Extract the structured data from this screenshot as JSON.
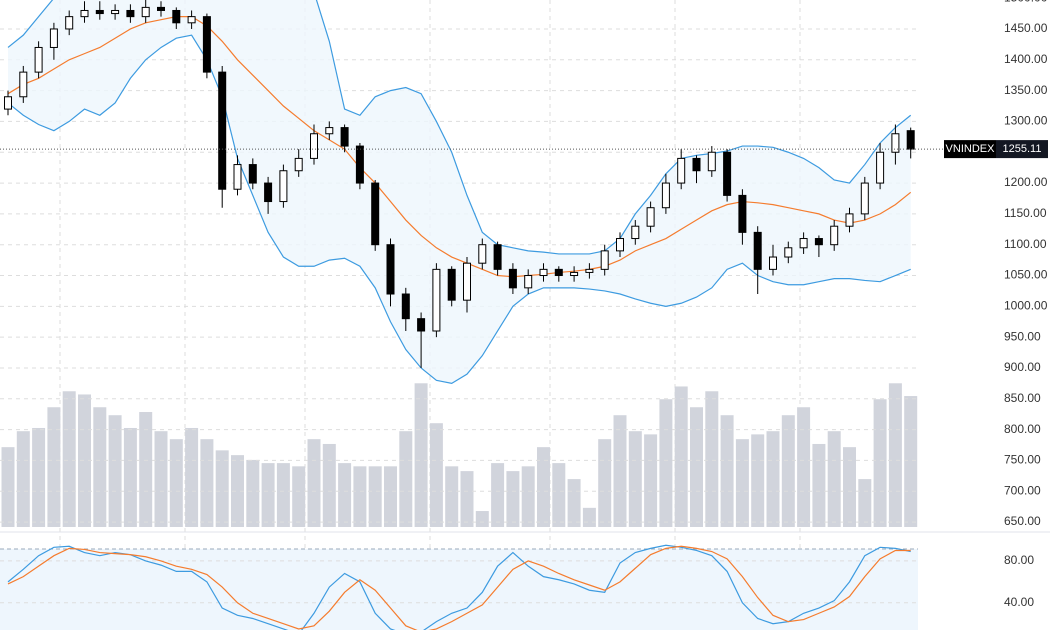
{
  "chart_data": {
    "type": "candlestick",
    "ticker": "VNINDEX",
    "last_value": 1255.11,
    "ylim": [
      642,
      1497
    ],
    "yticks": [
      {
        "value": 650,
        "label": "650.00"
      },
      {
        "value": 700,
        "label": "700.00"
      },
      {
        "value": 750,
        "label": "750.00"
      },
      {
        "value": 800,
        "label": "800.00"
      },
      {
        "value": 850,
        "label": "850.00"
      },
      {
        "value": 900,
        "label": "900.00"
      },
      {
        "value": 950,
        "label": "950.00"
      },
      {
        "value": 1000,
        "label": "1000.00"
      },
      {
        "value": 1050,
        "label": "1050.00"
      },
      {
        "value": 1100,
        "label": "1100.00"
      },
      {
        "value": 1150,
        "label": "1150.00"
      },
      {
        "value": 1200,
        "label": "1200.00"
      },
      {
        "value": 1250,
        "label": "1250.00"
      },
      {
        "value": 1300,
        "label": "1300.00"
      },
      {
        "value": 1350,
        "label": "1350.00"
      },
      {
        "value": 1400,
        "label": "1400.00"
      },
      {
        "value": 1450,
        "label": "1450.00"
      },
      {
        "value": 1500,
        "label": "1500.00"
      }
    ],
    "open": [
      1320,
      1340,
      1380,
      1420,
      1450,
      1470,
      1480,
      1475,
      1480,
      1470,
      1485,
      1480,
      1460,
      1470,
      1380,
      1190,
      1230,
      1200,
      1170,
      1220,
      1240,
      1280,
      1290,
      1260,
      1200,
      1100,
      1020,
      980,
      960,
      1060,
      1010,
      1070,
      1100,
      1060,
      1030,
      1050,
      1060,
      1050,
      1055,
      1060,
      1090,
      1110,
      1130,
      1160,
      1200,
      1240,
      1220,
      1250,
      1180,
      1120,
      1060,
      1080,
      1095,
      1110,
      1100,
      1130,
      1150,
      1200,
      1250,
      1285
    ],
    "high": [
      1350,
      1390,
      1430,
      1460,
      1480,
      1495,
      1495,
      1490,
      1490,
      1497,
      1495,
      1485,
      1480,
      1475,
      1390,
      1245,
      1240,
      1210,
      1230,
      1255,
      1295,
      1300,
      1295,
      1265,
      1205,
      1110,
      1030,
      990,
      1070,
      1065,
      1080,
      1110,
      1105,
      1070,
      1060,
      1070,
      1065,
      1065,
      1070,
      1100,
      1120,
      1140,
      1170,
      1215,
      1255,
      1245,
      1260,
      1255,
      1190,
      1130,
      1100,
      1105,
      1120,
      1115,
      1140,
      1160,
      1210,
      1265,
      1295,
      1290
    ],
    "low": [
      1310,
      1330,
      1370,
      1400,
      1440,
      1460,
      1465,
      1465,
      1460,
      1460,
      1470,
      1450,
      1450,
      1370,
      1160,
      1180,
      1190,
      1150,
      1160,
      1210,
      1230,
      1270,
      1250,
      1190,
      1090,
      1000,
      960,
      900,
      950,
      1000,
      990,
      1060,
      1050,
      1020,
      1020,
      1040,
      1040,
      1040,
      1045,
      1050,
      1080,
      1100,
      1120,
      1150,
      1190,
      1200,
      1210,
      1170,
      1100,
      1020,
      1050,
      1070,
      1085,
      1080,
      1090,
      1120,
      1140,
      1190,
      1230,
      1240
    ],
    "close": [
      1340,
      1380,
      1420,
      1450,
      1470,
      1480,
      1475,
      1480,
      1470,
      1485,
      1480,
      1460,
      1470,
      1380,
      1190,
      1230,
      1200,
      1170,
      1220,
      1240,
      1280,
      1290,
      1260,
      1200,
      1100,
      1020,
      980,
      960,
      1060,
      1010,
      1070,
      1100,
      1060,
      1030,
      1050,
      1060,
      1050,
      1055,
      1060,
      1090,
      1110,
      1130,
      1160,
      1200,
      1240,
      1220,
      1250,
      1180,
      1120,
      1060,
      1080,
      1095,
      1110,
      1100,
      1130,
      1150,
      1200,
      1250,
      1280,
      1255.11
    ],
    "ma": [
      1345,
      1360,
      1370,
      1385,
      1400,
      1410,
      1420,
      1435,
      1450,
      1460,
      1465,
      1470,
      1470,
      1455,
      1430,
      1400,
      1375,
      1350,
      1325,
      1305,
      1285,
      1270,
      1255,
      1225,
      1200,
      1170,
      1140,
      1115,
      1095,
      1080,
      1070,
      1060,
      1050,
      1048,
      1050,
      1052,
      1055,
      1057,
      1060,
      1065,
      1075,
      1090,
      1100,
      1110,
      1125,
      1140,
      1155,
      1165,
      1170,
      1168,
      1165,
      1160,
      1155,
      1150,
      1140,
      1135,
      1140,
      1150,
      1165,
      1185
    ],
    "upper_band": [
      1420,
      1440,
      1470,
      1500,
      1530,
      1540,
      1550,
      1550,
      1560,
      1560,
      1560,
      1560,
      1560,
      1560,
      1560,
      1570,
      1570,
      1570,
      1560,
      1550,
      1510,
      1430,
      1320,
      1310,
      1340,
      1350,
      1355,
      1345,
      1300,
      1250,
      1180,
      1120,
      1100,
      1095,
      1090,
      1088,
      1085,
      1085,
      1085,
      1090,
      1110,
      1150,
      1180,
      1215,
      1240,
      1245,
      1248,
      1252,
      1260,
      1260,
      1258,
      1250,
      1240,
      1225,
      1205,
      1200,
      1230,
      1265,
      1290,
      1310
    ],
    "lower_band": [
      1330,
      1310,
      1295,
      1285,
      1300,
      1320,
      1310,
      1330,
      1370,
      1400,
      1420,
      1435,
      1440,
      1400,
      1340,
      1240,
      1180,
      1120,
      1080,
      1065,
      1065,
      1075,
      1078,
      1065,
      1030,
      975,
      930,
      900,
      880,
      875,
      890,
      920,
      960,
      1000,
      1020,
      1030,
      1030,
      1030,
      1028,
      1025,
      1020,
      1012,
      1005,
      1000,
      1005,
      1015,
      1030,
      1060,
      1070,
      1050,
      1040,
      1035,
      1035,
      1040,
      1045,
      1045,
      1042,
      1040,
      1050,
      1060
    ],
    "ma_color": "#f57c2e",
    "band_color": "#3d9be0",
    "band_fill": "#eef6fd",
    "volume_ylim": [
      0,
      330
    ],
    "volume_color": "#d1d4dc",
    "volume": [
      50,
      60,
      62,
      75,
      85,
      83,
      75,
      70,
      62,
      72,
      60,
      55,
      62,
      55,
      48,
      45,
      42,
      40,
      40,
      38,
      55,
      52,
      40,
      38,
      38,
      38,
      60,
      90,
      65,
      38,
      35,
      10,
      40,
      35,
      38,
      50,
      40,
      30,
      12,
      55,
      70,
      60,
      58,
      80,
      88,
      75,
      85,
      70,
      55,
      58,
      60,
      70,
      75,
      52,
      60,
      50,
      30,
      80,
      90,
      82
    ],
    "stoch_ylim": [
      14,
      100
    ],
    "stoch_yticks": [
      {
        "value": 80,
        "label": "80.00"
      },
      {
        "value": 40,
        "label": "40.00"
      }
    ],
    "stoch_k": [
      60,
      72,
      85,
      93,
      94,
      88,
      85,
      88,
      86,
      80,
      76,
      70,
      70,
      60,
      35,
      28,
      25,
      20,
      15,
      10,
      30,
      55,
      68,
      60,
      30,
      15,
      10,
      12,
      22,
      30,
      35,
      50,
      75,
      88,
      75,
      65,
      62,
      58,
      52,
      50,
      78,
      88,
      92,
      95,
      93,
      90,
      85,
      70,
      40,
      25,
      20,
      22,
      30,
      35,
      42,
      60,
      85,
      93,
      92,
      89
    ],
    "stoch_d": [
      58,
      65,
      75,
      85,
      92,
      91,
      88,
      87,
      86,
      84,
      80,
      75,
      72,
      67,
      55,
      40,
      30,
      25,
      20,
      15,
      18,
      32,
      50,
      62,
      52,
      35,
      18,
      12,
      15,
      22,
      30,
      38,
      55,
      72,
      80,
      75,
      68,
      62,
      57,
      52,
      60,
      73,
      86,
      92,
      94,
      92,
      89,
      82,
      65,
      45,
      28,
      22,
      24,
      30,
      36,
      46,
      65,
      82,
      90,
      90
    ],
    "stoch_k_color": "#3d9be0",
    "stoch_d_color": "#f57c2e"
  }
}
